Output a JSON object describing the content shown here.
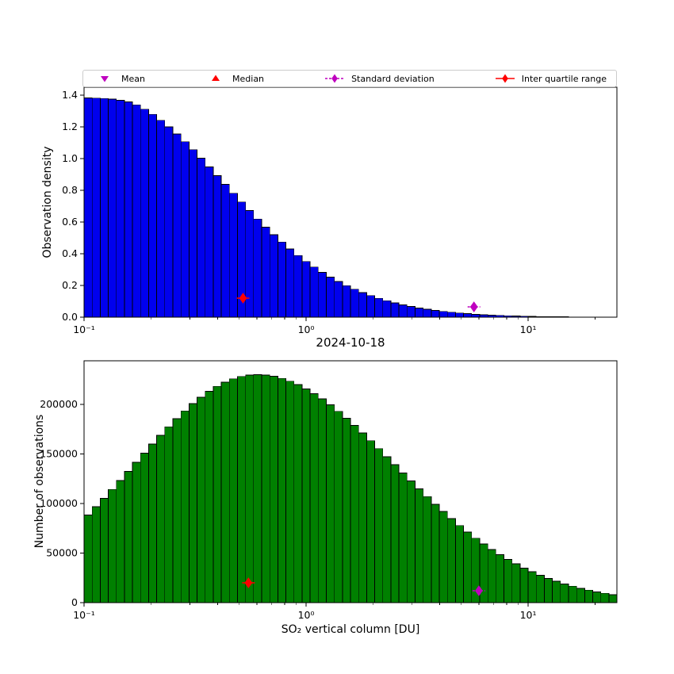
{
  "legend": {
    "items": [
      {
        "label": "Mean",
        "marker": "triangle-down",
        "color": "#bf00bf",
        "line": "none"
      },
      {
        "label": "Median",
        "marker": "triangle-up",
        "color": "#ff0000",
        "line": "none"
      },
      {
        "label": "Standard deviation",
        "marker": "diamond",
        "color": "#bf00bf",
        "line": "dashed"
      },
      {
        "label": "Inter quartile range",
        "marker": "diamond",
        "color": "#ff0000",
        "line": "solid"
      }
    ]
  },
  "chart_data": [
    {
      "type": "bar",
      "name": "observation-density-histogram",
      "ylabel": "Observation density",
      "xscale": "log",
      "xlim": [
        0.1,
        25.1
      ],
      "ylim": [
        0,
        1.45
      ],
      "ytick_values": [
        0,
        0.2,
        0.4,
        0.6,
        0.8,
        1.0,
        1.2,
        1.4
      ],
      "ytick_labels": [
        "0.0",
        "0.2",
        "0.4",
        "0.6",
        "0.8",
        "1.0",
        "1.2",
        "1.4"
      ],
      "xtick_values": [
        0.1,
        1,
        10
      ],
      "xtick_labels": [
        "10⁻¹",
        "10⁰",
        "10¹"
      ],
      "bar_color": "#0000ee",
      "bar_edge_color": "#000000",
      "bins": {
        "log10_start": -1,
        "log10_step": 0.036364,
        "count": 66
      },
      "values": [
        1.383,
        1.381,
        1.379,
        1.375,
        1.368,
        1.357,
        1.339,
        1.311,
        1.279,
        1.241,
        1.2,
        1.155,
        1.106,
        1.056,
        1.003,
        0.948,
        0.893,
        0.837,
        0.781,
        0.726,
        0.672,
        0.619,
        0.568,
        0.52,
        0.474,
        0.43,
        0.389,
        0.351,
        0.316,
        0.283,
        0.253,
        0.225,
        0.199,
        0.176,
        0.155,
        0.136,
        0.119,
        0.104,
        0.09,
        0.078,
        0.067,
        0.058,
        0.05,
        0.042,
        0.036,
        0.031,
        0.026,
        0.022,
        0.018,
        0.015,
        0.013,
        0.011,
        0.009,
        0.0072,
        0.0059,
        0.0049,
        0.004,
        0.0032,
        0.0026,
        0.0021,
        0.0017,
        0.0014,
        0.0011,
        0.0009,
        0.0007,
        0.0006
      ],
      "markers": [
        {
          "name": "inter-quartile-range",
          "shape": "diamond",
          "color": "#ff0000",
          "line": "solid",
          "x": 0.52,
          "y": 0.12
        },
        {
          "name": "standard-deviation",
          "shape": "diamond",
          "color": "#bf00bf",
          "line": "dashed",
          "x": 5.7,
          "y": 0.065
        }
      ]
    },
    {
      "type": "bar",
      "name": "observation-count-histogram",
      "title": "2024-10-18",
      "xlabel": "SO₂ vertical column [DU]",
      "ylabel": "Number of observations",
      "xscale": "log",
      "xlim": [
        0.1,
        25.1
      ],
      "ylim": [
        0,
        244000
      ],
      "ytick_values": [
        0,
        50000,
        100000,
        150000,
        200000
      ],
      "ytick_labels": [
        "0",
        "50000",
        "100000",
        "150000",
        "200000"
      ],
      "xtick_values": [
        0.1,
        1,
        10
      ],
      "xtick_labels": [
        "10⁻¹",
        "10⁰",
        "10¹"
      ],
      "bar_color": "#008000",
      "bar_edge_color": "#000000",
      "bins": {
        "log10_start": -1,
        "log10_step": 0.036364,
        "count": 66
      },
      "values": [
        88500,
        96800,
        105300,
        114200,
        123200,
        132400,
        141600,
        150800,
        159900,
        168800,
        177400,
        185700,
        193400,
        200700,
        207300,
        213100,
        218200,
        222500,
        225800,
        228200,
        229600,
        230000,
        229500,
        228300,
        226200,
        223400,
        219900,
        215700,
        210900,
        205500,
        199500,
        193000,
        186100,
        178800,
        171200,
        163400,
        155400,
        147300,
        139100,
        130900,
        122800,
        114800,
        107000,
        99300,
        91900,
        84700,
        77800,
        71300,
        65000,
        59200,
        53600,
        48400,
        43600,
        39100,
        34900,
        31100,
        27600,
        24400,
        21600,
        18900,
        16600,
        14500,
        12600,
        10900,
        9400,
        8100
      ],
      "markers": [
        {
          "name": "inter-quartile-range",
          "shape": "diamond",
          "color": "#ff0000",
          "line": "solid",
          "x": 0.55,
          "y": 20000
        },
        {
          "name": "standard-deviation",
          "shape": "diamond",
          "color": "#bf00bf",
          "line": "dashed",
          "x": 6.0,
          "y": 12000
        }
      ]
    }
  ]
}
